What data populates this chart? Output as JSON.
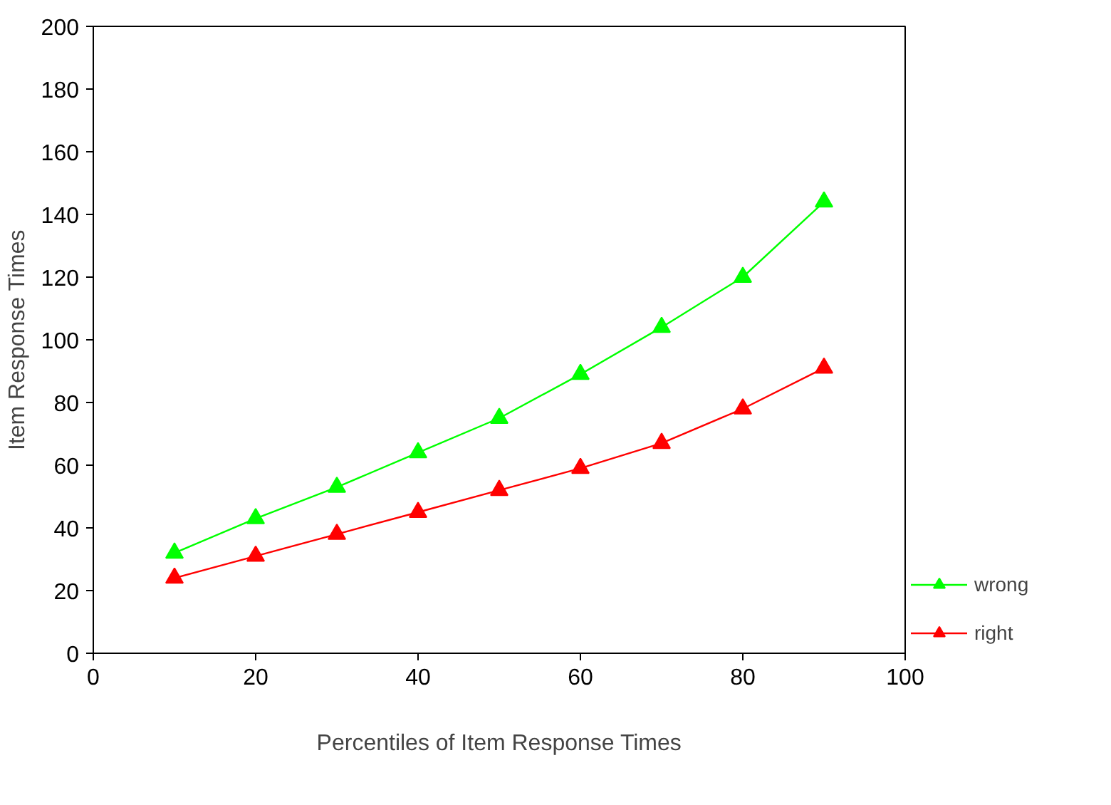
{
  "chart_data": {
    "type": "line",
    "xlabel": "Percentiles of Item Response Times",
    "ylabel": "Item Response Times",
    "x": [
      10,
      20,
      30,
      40,
      50,
      60,
      70,
      80,
      90
    ],
    "series": [
      {
        "name": "wrong",
        "color": "#00ff00",
        "marker": "triangle",
        "values": [
          32,
          43,
          53,
          64,
          75,
          89,
          104,
          120,
          144
        ]
      },
      {
        "name": "right",
        "color": "#ff0000",
        "marker": "triangle",
        "values": [
          24,
          31,
          38,
          45,
          52,
          59,
          67,
          78,
          91
        ]
      }
    ],
    "xlim": [
      0,
      100
    ],
    "ylim": [
      0,
      200
    ],
    "xticks": [
      0,
      20,
      40,
      60,
      80,
      100
    ],
    "yticks": [
      0,
      20,
      40,
      60,
      80,
      100,
      120,
      140,
      160,
      180,
      200
    ],
    "grid": false,
    "legend": "bottom right",
    "line_style": "solid"
  }
}
